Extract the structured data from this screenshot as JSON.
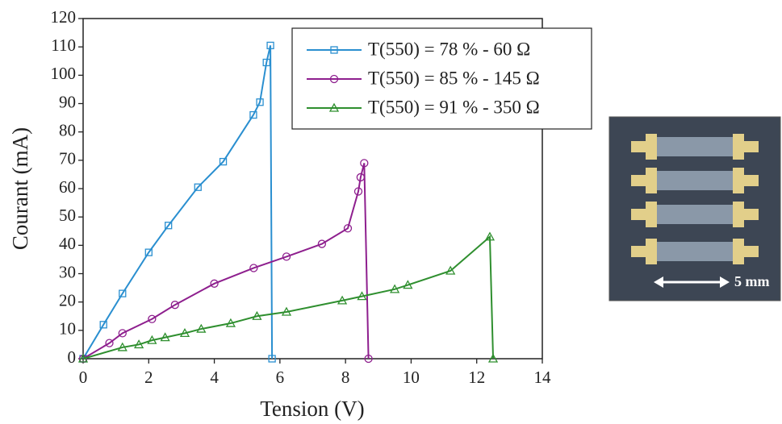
{
  "chart_data": {
    "type": "line",
    "x_label": "Tension (V)",
    "y_label": "Courant (mA)",
    "xlim": [
      0,
      14
    ],
    "xticks": [
      0,
      2,
      4,
      6,
      8,
      10,
      12,
      14
    ],
    "ylim": [
      0,
      120
    ],
    "yticks": [
      0,
      10,
      20,
      30,
      40,
      50,
      60,
      70,
      80,
      90,
      100,
      110,
      120
    ],
    "grid": false,
    "legend": "top-right",
    "series": [
      {
        "name": "T(550) = 78 % - 60 Ω",
        "color": "#2a8fd0",
        "marker": "square",
        "x": [
          0,
          0.62,
          1.2,
          2.0,
          2.6,
          3.5,
          4.27,
          5.19,
          5.39,
          5.59,
          5.71,
          5.76
        ],
        "values": [
          0,
          12,
          23,
          37.5,
          47,
          60.5,
          69.5,
          86,
          90.5,
          104.5,
          110.5,
          0
        ]
      },
      {
        "name": "T(550) = 85 % - 145 Ω",
        "color": "#8e1f8e",
        "marker": "circle",
        "x": [
          0,
          0.8,
          1.2,
          2.1,
          2.8,
          4.0,
          5.2,
          6.2,
          7.28,
          8.07,
          8.39,
          8.46,
          8.57,
          8.7
        ],
        "values": [
          0,
          5.5,
          9,
          14,
          19,
          26.5,
          32,
          36,
          40.5,
          46,
          59,
          64,
          69,
          0
        ]
      },
      {
        "name": "T(550) = 91 % - 350 Ω",
        "color": "#2f8f2f",
        "marker": "triangle",
        "x": [
          0,
          1.2,
          1.7,
          2.1,
          2.5,
          3.1,
          3.6,
          4.5,
          5.3,
          6.2,
          7.9,
          8.5,
          9.5,
          9.9,
          11.2,
          12.4,
          12.5
        ],
        "values": [
          0,
          4,
          5,
          6.5,
          7.5,
          9,
          10.5,
          12.5,
          15,
          16.5,
          20.5,
          22,
          24.5,
          26,
          31,
          43,
          0
        ]
      }
    ]
  },
  "inset": {
    "scale_label": "5 mm"
  }
}
